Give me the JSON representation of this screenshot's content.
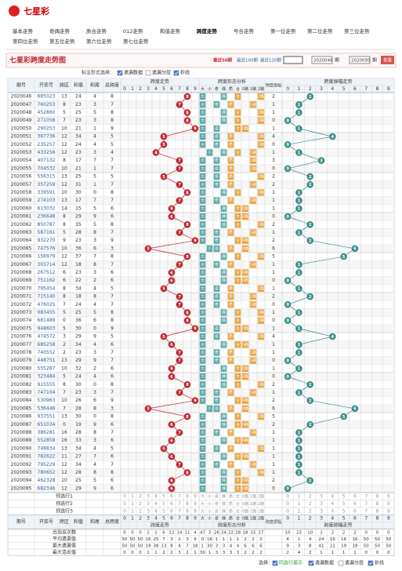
{
  "header": {
    "logo": "七星彩"
  },
  "nav": [
    "基本走势",
    "奇偶走势",
    "质合走势",
    "012走势",
    "和值走势",
    "跨度走势",
    "号合走势",
    "第一位走势",
    "第二位走势",
    "第三位走势",
    "第四位走势",
    "第五位走势",
    "第六位走势",
    "第七位走势"
  ],
  "active_nav": 5,
  "title": "七星彩跨度走势图",
  "period_links": [
    "最近50期",
    "最近100期",
    "最近120期"
  ],
  "range": {
    "from": "2020046",
    "to": "2020095",
    "unit": "期",
    "button": "查看"
  },
  "options": {
    "label": "标注形式选择:",
    "items": [
      {
        "label": "遗漏数据",
        "checked": true
      },
      {
        "label": "遗漏分层",
        "checked": false
      },
      {
        "label": "折线",
        "checked": true
      }
    ]
  },
  "table": {
    "columns": [
      "期号",
      "开奖号",
      "跨区",
      "和值",
      "和尾",
      "总跨度"
    ],
    "groups": [
      "跨度走势",
      "跨度形态分析",
      "跨度振幅",
      "跨度振幅走势"
    ],
    "digits": [
      0,
      1,
      2,
      3,
      4,
      5,
      6,
      7,
      8,
      9
    ],
    "forms": [
      "大",
      "小",
      "奇",
      "偶",
      "质",
      "合",
      "0路",
      "1路",
      "2路"
    ],
    "rows": [
      {
        "issue": "2020046",
        "number": "685023",
        "kq": 13,
        "sum": 24,
        "tail": 4,
        "span": 8,
        "form": [
          "大",
          "偶",
          "合",
          "2路"
        ],
        "amp": 2
      },
      {
        "issue": "2020047",
        "number": "760253",
        "kq": 8,
        "sum": 23,
        "tail": 3,
        "span": 7,
        "form": [
          "大",
          "奇",
          "质",
          "1路"
        ],
        "amp": 1
      },
      {
        "issue": "2020048",
        "number": "452860",
        "kq": 5,
        "sum": 25,
        "tail": 5,
        "span": 8,
        "form": [
          "大",
          "偶",
          "合",
          "2路"
        ],
        "amp": 1
      },
      {
        "issue": "2020049",
        "number": "271058",
        "kq": 7,
        "sum": 23,
        "tail": 3,
        "span": 8,
        "form": [
          "大",
          "偶",
          "合",
          "2路"
        ],
        "amp": 0
      },
      {
        "issue": "2020050",
        "number": "290253",
        "kq": 10,
        "sum": 21,
        "tail": 1,
        "span": 9,
        "form": [
          "大",
          "奇",
          "合",
          "0路"
        ],
        "amp": 1
      },
      {
        "issue": "2020051",
        "number": "387736",
        "kq": 12,
        "sum": 34,
        "tail": 4,
        "span": 5,
        "form": [
          "大",
          "奇",
          "质",
          "2路"
        ],
        "amp": 4
      },
      {
        "issue": "2020052",
        "number": "235257",
        "kq": 12,
        "sum": 24,
        "tail": 4,
        "span": 5,
        "form": [
          "大",
          "奇",
          "质",
          "2路"
        ],
        "amp": 0
      },
      {
        "issue": "2020053",
        "number": "433256",
        "kq": 12,
        "sum": 23,
        "tail": 3,
        "span": 4,
        "form": [
          "小",
          "偶",
          "合",
          "1路"
        ],
        "amp": 1
      },
      {
        "issue": "2020054",
        "number": "407132",
        "kq": 8,
        "sum": 17,
        "tail": 7,
        "span": 7,
        "form": [
          "大",
          "奇",
          "质",
          "1路"
        ],
        "amp": 3
      },
      {
        "issue": "2020055",
        "number": "704532",
        "kq": 10,
        "sum": 21,
        "tail": 1,
        "span": 7,
        "form": [
          "大",
          "奇",
          "质",
          "1路"
        ],
        "amp": 0
      },
      {
        "issue": "2020056",
        "number": "556315",
        "kq": 13,
        "sum": 25,
        "tail": 5,
        "span": 5,
        "form": [
          "大",
          "奇",
          "质",
          "2路"
        ],
        "amp": 2
      },
      {
        "issue": "2020057",
        "number": "357259",
        "kq": 12,
        "sum": 31,
        "tail": 1,
        "span": 7,
        "form": [
          "大",
          "奇",
          "质",
          "1路"
        ],
        "amp": 2
      },
      {
        "issue": "2020058",
        "number": "339591",
        "kq": 10,
        "sum": 30,
        "tail": 0,
        "span": 8,
        "form": [
          "大",
          "偶",
          "合",
          "2路"
        ],
        "amp": 1
      },
      {
        "issue": "2020059",
        "number": "274103",
        "kq": 13,
        "sum": 17,
        "tail": 7,
        "span": 7,
        "form": [
          "大",
          "奇",
          "质",
          "1路"
        ],
        "amp": 1
      },
      {
        "issue": "2020060",
        "number": "613032",
        "kq": 14,
        "sum": 15,
        "tail": 5,
        "span": 6,
        "form": [
          "大",
          "偶",
          "合",
          "0路"
        ],
        "amp": 1
      },
      {
        "issue": "2020061",
        "number": "236648",
        "kq": 8,
        "sum": 29,
        "tail": 9,
        "span": 6,
        "form": [
          "大",
          "偶",
          "合",
          "0路"
        ],
        "amp": 0
      },
      {
        "issue": "2020062",
        "number": "850787",
        "kq": 8,
        "sum": 35,
        "tail": 5,
        "span": 8,
        "form": [
          "大",
          "偶",
          "合",
          "2路"
        ],
        "amp": 2
      },
      {
        "issue": "2020063",
        "number": "587161",
        "kq": 5,
        "sum": 28,
        "tail": 8,
        "span": 7,
        "form": [
          "大",
          "奇",
          "质",
          "1路"
        ],
        "amp": 1
      },
      {
        "issue": "2020064",
        "number": "932270",
        "kq": 9,
        "sum": 23,
        "tail": 3,
        "span": 9,
        "form": [
          "大",
          "奇",
          "合",
          "0路"
        ],
        "amp": 2
      },
      {
        "issue": "2020065",
        "number": "747576",
        "kq": 10,
        "sum": 36,
        "tail": 6,
        "span": 3,
        "form": [
          "小",
          "奇",
          "质",
          "0路"
        ],
        "amp": 6
      },
      {
        "issue": "2020066",
        "number": "156979",
        "kq": 12,
        "sum": 37,
        "tail": 7,
        "span": 8,
        "form": [
          "大",
          "偶",
          "合",
          "2路"
        ],
        "amp": 5
      },
      {
        "issue": "2020067",
        "number": "303714",
        "kq": 12,
        "sum": 18,
        "tail": 8,
        "span": 7,
        "form": [
          "大",
          "奇",
          "质",
          "1路"
        ],
        "amp": 1
      },
      {
        "issue": "2020068",
        "number": "267512",
        "kq": 6,
        "sum": 23,
        "tail": 3,
        "span": 6,
        "form": [
          "大",
          "偶",
          "合",
          "0路"
        ],
        "amp": 1
      },
      {
        "issue": "2020069",
        "number": "751162",
        "kq": 6,
        "sum": 22,
        "tail": 2,
        "span": 6,
        "form": [
          "大",
          "偶",
          "合",
          "0路"
        ],
        "amp": 0
      },
      {
        "issue": "2020070",
        "number": "795454",
        "kq": 8,
        "sum": 34,
        "tail": 4,
        "span": 5,
        "form": [
          "大",
          "奇",
          "质",
          "2路"
        ],
        "amp": 1
      },
      {
        "issue": "2020071",
        "number": "715140",
        "kq": 8,
        "sum": 18,
        "tail": 8,
        "span": 7,
        "form": [
          "大",
          "奇",
          "质",
          "1路"
        ],
        "amp": 2
      },
      {
        "issue": "2020072",
        "number": "476025",
        "kq": 7,
        "sum": 24,
        "tail": 4,
        "span": 7,
        "form": [
          "大",
          "奇",
          "质",
          "1路"
        ],
        "amp": 0
      },
      {
        "issue": "2020073",
        "number": "083455",
        "kq": 5,
        "sum": 25,
        "tail": 5,
        "span": 8,
        "form": [
          "大",
          "偶",
          "合",
          "2路"
        ],
        "amp": 1
      },
      {
        "issue": "2020074",
        "number": "681489",
        "kq": 0,
        "sum": 36,
        "tail": 6,
        "span": 8,
        "form": [
          "大",
          "偶",
          "合",
          "2路"
        ],
        "amp": 0
      },
      {
        "issue": "2020075",
        "number": "948603",
        "kq": 5,
        "sum": 30,
        "tail": 0,
        "span": 9,
        "form": [
          "大",
          "奇",
          "合",
          "0路"
        ],
        "amp": 1
      },
      {
        "issue": "2020076",
        "number": "474572",
        "kq": 3,
        "sum": 29,
        "tail": 9,
        "span": 5,
        "form": [
          "大",
          "奇",
          "质",
          "2路"
        ],
        "amp": 4
      },
      {
        "issue": "2020077",
        "number": "685258",
        "kq": 2,
        "sum": 34,
        "tail": 4,
        "span": 6,
        "form": [
          "大",
          "偶",
          "合",
          "0路"
        ],
        "amp": 1
      },
      {
        "issue": "2020078",
        "number": "740552",
        "kq": 2,
        "sum": 23,
        "tail": 3,
        "span": 7,
        "form": [
          "大",
          "奇",
          "质",
          "1路"
        ],
        "amp": 1
      },
      {
        "issue": "2020079",
        "number": "448751",
        "kq": 13,
        "sum": 29,
        "tail": 9,
        "span": 7,
        "form": [
          "大",
          "奇",
          "质",
          "1路"
        ],
        "amp": 0
      },
      {
        "issue": "2020080",
        "number": "555287",
        "kq": 10,
        "sum": 32,
        "tail": 2,
        "span": 6,
        "form": [
          "大",
          "偶",
          "合",
          "0路"
        ],
        "amp": 1
      },
      {
        "issue": "2020081",
        "number": "323484",
        "kq": 5,
        "sum": 24,
        "tail": 4,
        "span": 6,
        "form": [
          "大",
          "偶",
          "合",
          "0路"
        ],
        "amp": 0
      },
      {
        "issue": "2020082",
        "number": "915555",
        "kq": 8,
        "sum": 30,
        "tail": 0,
        "span": 8,
        "form": [
          "大",
          "偶",
          "合",
          "2路"
        ],
        "amp": 2
      },
      {
        "issue": "2020083",
        "number": "747104",
        "kq": 7,
        "sum": 23,
        "tail": 3,
        "span": 7,
        "form": [
          "大",
          "奇",
          "质",
          "1路"
        ],
        "amp": 1
      },
      {
        "issue": "2020084",
        "number": "530963",
        "kq": 10,
        "sum": 26,
        "tail": 6,
        "span": 9,
        "form": [
          "大",
          "奇",
          "合",
          "0路"
        ],
        "amp": 2
      },
      {
        "issue": "2020085",
        "number": "536446",
        "kq": 7,
        "sum": 28,
        "tail": 8,
        "span": 3,
        "form": [
          "小",
          "奇",
          "质",
          "0路"
        ],
        "amp": 6
      },
      {
        "issue": "2020086",
        "number": "937551",
        "kq": 13,
        "sum": 30,
        "tail": 0,
        "span": 8,
        "form": [
          "大",
          "偶",
          "合",
          "2路"
        ],
        "amp": 5
      },
      {
        "issue": "2020087",
        "number": "651034",
        "kq": 0,
        "sum": 19,
        "tail": 9,
        "span": 6,
        "form": [
          "大",
          "偶",
          "合",
          "0路"
        ],
        "amp": 2
      },
      {
        "issue": "2020088",
        "number": "386281",
        "kq": 16,
        "sum": 28,
        "tail": 8,
        "span": 7,
        "form": [
          "大",
          "奇",
          "质",
          "1路"
        ],
        "amp": 1
      },
      {
        "issue": "2020089",
        "number": "552858",
        "kq": 16,
        "sum": 33,
        "tail": 3,
        "span": 6,
        "form": [
          "大",
          "偶",
          "合",
          "0路"
        ],
        "amp": 1
      },
      {
        "issue": "2020090",
        "number": "748834",
        "kq": 13,
        "sum": 34,
        "tail": 4,
        "span": 5,
        "form": [
          "大",
          "奇",
          "质",
          "2路"
        ],
        "amp": 1
      },
      {
        "issue": "2020091",
        "number": "782622",
        "kq": 11,
        "sum": 27,
        "tail": 7,
        "span": 6,
        "form": [
          "大",
          "偶",
          "合",
          "0路"
        ],
        "amp": 1
      },
      {
        "issue": "2020092",
        "number": "795229",
        "kq": 12,
        "sum": 34,
        "tail": 4,
        "span": 7,
        "form": [
          "大",
          "奇",
          "质",
          "1路"
        ],
        "amp": 1
      },
      {
        "issue": "2020093",
        "number": "780652",
        "kq": 12,
        "sum": 28,
        "tail": 8,
        "span": 8,
        "form": [
          "大",
          "偶",
          "合",
          "2路"
        ],
        "amp": 1
      },
      {
        "issue": "2020094",
        "number": "462328",
        "kq": 10,
        "sum": 25,
        "tail": 5,
        "span": 6,
        "form": [
          "大",
          "偶",
          "合",
          "0路"
        ],
        "amp": 2
      },
      {
        "issue": "2020095",
        "number": "682346",
        "kq": 12,
        "sum": 29,
        "tail": 9,
        "span": 6,
        "form": [
          "大",
          "偶",
          "合",
          "0路"
        ],
        "amp": 0
      }
    ],
    "preselect": [
      "预选行1",
      "预选行2",
      "预选行3"
    ],
    "stats": [
      {
        "label": "出现总次数",
        "values": [
          0,
          0,
          0,
          2,
          1,
          6,
          12,
          14,
          11,
          4,
          47,
          3,
          26,
          24,
          22,
          28,
          18,
          15,
          17,
          10,
          23,
          10,
          1,
          2,
          2,
          2,
          0,
          0,
          0
        ]
      },
      {
        "label": "平均遗漏值",
        "values": [
          50,
          50,
          50,
          16,
          25,
          7,
          3,
          2,
          3,
          9,
          0,
          16,
          1,
          1,
          1,
          1,
          2,
          2,
          2,
          4,
          1,
          4,
          24,
          16,
          16,
          16,
          50,
          50,
          50
        ]
      },
      {
        "label": "最大遗漏值",
        "values": [
          50,
          50,
          50,
          19,
          38,
          13,
          8,
          4,
          7,
          18,
          1,
          30,
          3,
          3,
          4,
          4,
          6,
          6,
          6,
          9,
          3,
          8,
          41,
          21,
          19,
          19,
          50,
          50,
          50
        ]
      },
      {
        "label": "最大连出值",
        "values": [
          0,
          0,
          0,
          1,
          1,
          2,
          2,
          3,
          2,
          1,
          30,
          1,
          3,
          3,
          3,
          3,
          2,
          2,
          2,
          2,
          4,
          2,
          1,
          1,
          1,
          1,
          0,
          0,
          0
        ]
      }
    ]
  },
  "footer": {
    "label": "选择:",
    "items": [
      {
        "label": "同选行提示",
        "checked": true
      },
      {
        "label": "遗漏数据",
        "checked": true
      },
      {
        "label": "遗漏分层",
        "checked": false
      },
      {
        "label": "折线",
        "checked": true
      }
    ]
  }
}
